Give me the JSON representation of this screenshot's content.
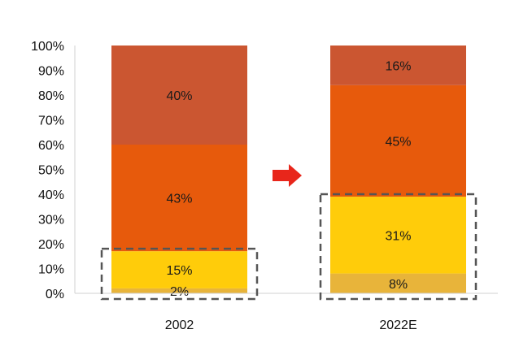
{
  "chart_data": {
    "type": "bar",
    "stacked": true,
    "percent_scale": true,
    "categories": [
      "2002",
      "2022E"
    ],
    "series": [
      {
        "values": [
          2,
          8
        ],
        "labels": [
          "2%",
          "8%"
        ],
        "color": "#E8B43A"
      },
      {
        "values": [
          15,
          31
        ],
        "labels": [
          "15%",
          "31%"
        ],
        "color": "#FFCC0A"
      },
      {
        "values": [
          43,
          45
        ],
        "labels": [
          "43%",
          "45%"
        ],
        "color": "#E75A0C"
      },
      {
        "values": [
          40,
          16
        ],
        "labels": [
          "40%",
          "16%"
        ],
        "color": "#CB5631"
      }
    ],
    "ylim": [
      0,
      100
    ],
    "yticks": [
      "0%",
      "10%",
      "20%",
      "30%",
      "40%",
      "50%",
      "60%",
      "70%",
      "80%",
      "90%",
      "100%"
    ],
    "grid": false,
    "annotations": [
      {
        "kind": "arrow",
        "direction": "right",
        "color": "#E8261B"
      },
      {
        "kind": "dashed-box",
        "category": "2002",
        "covers_series": [
          0,
          1
        ],
        "color": "#555555"
      },
      {
        "kind": "dashed-box",
        "category": "2022E",
        "covers_series": [
          0,
          1
        ],
        "color": "#555555"
      }
    ],
    "title": "",
    "xlabel": "",
    "ylabel": ""
  }
}
